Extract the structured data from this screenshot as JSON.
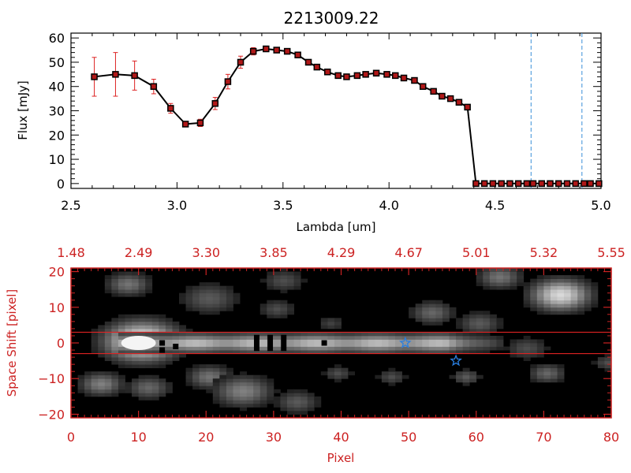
{
  "title": "2213009.22",
  "colors": {
    "axis_black": "#000000",
    "axis_red": "#cc2222",
    "errorbar": "#dd2222",
    "marker_fill": "#b01818",
    "dashed": "#3a8fd8",
    "star": "#2a7fe0",
    "band": "#dd2222"
  },
  "chart_data": [
    {
      "type": "line",
      "title": "2213009.22",
      "xlabel": "Lambda [um]",
      "ylabel": "Flux [mJy]",
      "xlim": [
        2.5,
        5.0
      ],
      "ylim": [
        -2,
        62
      ],
      "xticks": [
        2.5,
        3.0,
        3.5,
        4.0,
        4.5,
        5.0
      ],
      "xtick_labels": [
        "2.5",
        "3.0",
        "3.5",
        "4.0",
        "4.5",
        "5.0"
      ],
      "yticks": [
        0,
        10,
        20,
        30,
        40,
        50,
        60
      ],
      "ytick_labels": [
        "0",
        "10",
        "20",
        "30",
        "40",
        "50",
        "60"
      ],
      "vlines": [
        4.67,
        4.91
      ],
      "series": [
        {
          "name": "flux",
          "x": [
            2.61,
            2.71,
            2.8,
            2.89,
            2.97,
            3.04,
            3.11,
            3.18,
            3.24,
            3.3,
            3.36,
            3.42,
            3.47,
            3.52,
            3.57,
            3.62,
            3.66,
            3.71,
            3.76,
            3.8,
            3.85,
            3.89,
            3.94,
            3.99,
            4.03,
            4.07,
            4.12,
            4.16,
            4.21,
            4.25,
            4.29,
            4.33,
            4.37,
            4.41,
            4.45,
            4.49,
            4.53,
            4.57,
            4.61,
            4.65,
            4.68,
            4.72,
            4.76,
            4.8,
            4.84,
            4.88,
            4.92,
            4.95,
            4.99
          ],
          "y": [
            44,
            45,
            44.5,
            40,
            31,
            24.5,
            25,
            33,
            42,
            50,
            54.5,
            55.5,
            55,
            54.5,
            53,
            50,
            48,
            46,
            44.5,
            44,
            44.5,
            45,
            45.5,
            45,
            44.5,
            43.5,
            42.5,
            40,
            38,
            36,
            35,
            33.5,
            31.5,
            0,
            0,
            0,
            0,
            0,
            0,
            0,
            0,
            0,
            0,
            0,
            0,
            0,
            0,
            0,
            0
          ],
          "err": [
            8,
            9,
            6,
            3,
            2,
            1,
            1.5,
            2.5,
            3,
            2.5,
            1.5,
            1,
            1,
            1,
            1,
            1,
            1,
            1,
            1,
            1,
            1,
            1,
            1,
            1,
            1,
            1,
            1,
            1,
            1,
            1,
            1,
            1,
            1,
            0,
            0,
            0,
            0,
            0,
            0,
            0,
            0,
            0,
            0,
            0,
            0,
            0,
            0,
            0,
            0
          ]
        }
      ]
    },
    {
      "type": "heatmap",
      "xlabel": "Pixel",
      "ylabel": "Space Shift [pixel]",
      "xlim": [
        0,
        80
      ],
      "ylim": [
        -21,
        21
      ],
      "xticks": [
        0,
        10,
        20,
        30,
        40,
        50,
        60,
        70,
        80
      ],
      "xtick_labels": [
        "0",
        "10",
        "20",
        "30",
        "40",
        "50",
        "60",
        "70",
        "80"
      ],
      "yticks": [
        -20,
        -10,
        0,
        10,
        20
      ],
      "ytick_labels": [
        "−20",
        "−10",
        "0",
        "10",
        "20"
      ],
      "top_tick_labels": [
        "1.48",
        "2.49",
        "3.30",
        "3.85",
        "4.29",
        "4.67",
        "5.01",
        "5.32",
        "5.55"
      ],
      "band": [
        -3,
        3
      ],
      "stars": [
        {
          "x": 49.5,
          "y": 0
        },
        {
          "x": 57,
          "y": -5
        }
      ],
      "trace": {
        "x_start": 7,
        "x_end": 63,
        "y": 0
      },
      "blobs": [
        {
          "x": 10,
          "y": 0,
          "r": 5,
          "v": 1.0
        },
        {
          "x": 8,
          "y": 16,
          "r": 3,
          "v": 0.45
        },
        {
          "x": 20,
          "y": 12,
          "r": 4,
          "v": 0.35
        },
        {
          "x": 31,
          "y": 17,
          "r": 3,
          "v": 0.3
        },
        {
          "x": 30,
          "y": 9,
          "r": 2.5,
          "v": 0.3
        },
        {
          "x": 38,
          "y": 5,
          "r": 2,
          "v": 0.25
        },
        {
          "x": 53,
          "y": 8,
          "r": 3,
          "v": 0.4
        },
        {
          "x": 60,
          "y": 5,
          "r": 3,
          "v": 0.35
        },
        {
          "x": 63,
          "y": 18,
          "r": 3,
          "v": 0.45
        },
        {
          "x": 72,
          "y": 13,
          "r": 4,
          "v": 0.85
        },
        {
          "x": 67,
          "y": -2,
          "r": 3,
          "v": 0.3
        },
        {
          "x": 4,
          "y": -12,
          "r": 3,
          "v": 0.5
        },
        {
          "x": 11,
          "y": -13,
          "r": 3,
          "v": 0.4
        },
        {
          "x": 20,
          "y": -10,
          "r": 3,
          "v": 0.45
        },
        {
          "x": 25,
          "y": -14,
          "r": 4,
          "v": 0.5
        },
        {
          "x": 33,
          "y": -17,
          "r": 3,
          "v": 0.35
        },
        {
          "x": 39,
          "y": -9,
          "r": 2,
          "v": 0.3
        },
        {
          "x": 47,
          "y": -10,
          "r": 2,
          "v": 0.3
        },
        {
          "x": 58,
          "y": -10,
          "r": 2,
          "v": 0.35
        },
        {
          "x": 70,
          "y": -9,
          "r": 2.5,
          "v": 0.4
        },
        {
          "x": 79,
          "y": -6,
          "r": 2,
          "v": 0.3
        }
      ],
      "dark_pixels": [
        {
          "x": 13.5,
          "y": 0
        },
        {
          "x": 13.5,
          "y": -2
        },
        {
          "x": 15.5,
          "y": -1
        },
        {
          "x": 27.5,
          "y": 0
        },
        {
          "x": 27.5,
          "y": 1.5
        },
        {
          "x": 27.5,
          "y": -1.5
        },
        {
          "x": 29.5,
          "y": 0
        },
        {
          "x": 29.5,
          "y": 1.5
        },
        {
          "x": 29.5,
          "y": -1.5
        },
        {
          "x": 31.5,
          "y": 0
        },
        {
          "x": 31.5,
          "y": 1.5
        },
        {
          "x": 31.5,
          "y": -1.5
        },
        {
          "x": 37.5,
          "y": 0
        }
      ]
    }
  ]
}
